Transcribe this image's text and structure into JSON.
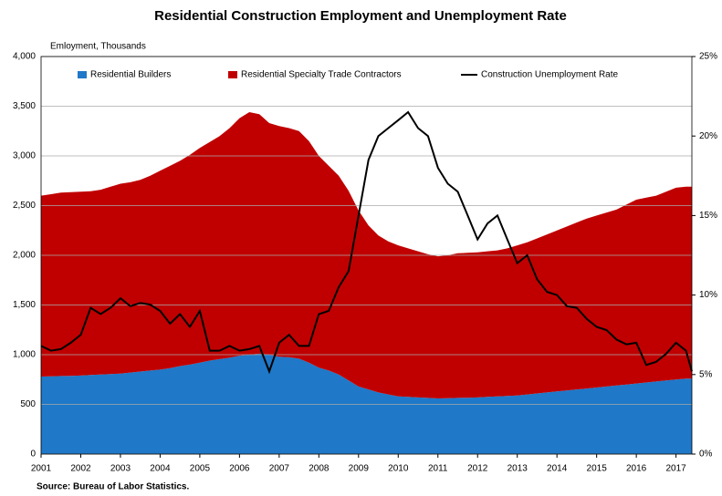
{
  "chart_data": {
    "type": "area",
    "title": "Residential Construction Employment and Unemployment Rate",
    "y_label": "Emloyment, Thousands",
    "source": "Source: Bureau of Labor Statistics.",
    "x": [
      2001,
      2001.25,
      2001.5,
      2001.75,
      2002,
      2002.25,
      2002.5,
      2002.75,
      2003,
      2003.25,
      2003.5,
      2003.75,
      2004,
      2004.25,
      2004.5,
      2004.75,
      2005,
      2005.25,
      2005.5,
      2005.75,
      2006,
      2006.25,
      2006.5,
      2006.75,
      2007,
      2007.25,
      2007.5,
      2007.75,
      2008,
      2008.25,
      2008.5,
      2008.75,
      2009,
      2009.25,
      2009.5,
      2009.75,
      2010,
      2010.25,
      2010.5,
      2010.75,
      2011,
      2011.25,
      2011.5,
      2011.75,
      2012,
      2012.25,
      2012.5,
      2012.75,
      2013,
      2013.25,
      2013.5,
      2013.75,
      2014,
      2014.25,
      2014.5,
      2014.75,
      2015,
      2015.25,
      2015.5,
      2015.75,
      2016,
      2016.25,
      2016.5,
      2016.75,
      2017,
      2017.25,
      2017.4
    ],
    "series": [
      {
        "name": "Residential Builders",
        "color": "#1f78c8",
        "values": [
          780,
          782,
          785,
          787,
          790,
          795,
          800,
          805,
          810,
          820,
          830,
          840,
          850,
          865,
          885,
          900,
          920,
          940,
          955,
          970,
          990,
          1000,
          1010,
          1000,
          980,
          975,
          960,
          920,
          870,
          840,
          800,
          740,
          680,
          650,
          620,
          600,
          580,
          575,
          570,
          565,
          560,
          562,
          565,
          567,
          570,
          575,
          580,
          585,
          590,
          600,
          610,
          620,
          630,
          640,
          650,
          660,
          670,
          680,
          690,
          700,
          710,
          720,
          730,
          740,
          750,
          760,
          760
        ]
      },
      {
        "name": "Residential Specialty Trade Contractors",
        "color": "#c00000",
        "values": [
          1820,
          1833,
          1845,
          1848,
          1850,
          1850,
          1860,
          1885,
          1910,
          1915,
          1930,
          1960,
          2000,
          2035,
          2065,
          2110,
          2160,
          2200,
          2245,
          2310,
          2390,
          2440,
          2410,
          2330,
          2320,
          2305,
          2290,
          2230,
          2130,
          2060,
          2000,
          1910,
          1770,
          1650,
          1580,
          1540,
          1520,
          1495,
          1470,
          1445,
          1430,
          1438,
          1455,
          1458,
          1460,
          1465,
          1470,
          1485,
          1510,
          1530,
          1560,
          1590,
          1620,
          1650,
          1680,
          1710,
          1730,
          1750,
          1770,
          1810,
          1850,
          1860,
          1870,
          1900,
          1930,
          1930,
          1930
        ]
      },
      {
        "name": "Construction Unemployment Rate",
        "color": "#000000",
        "type": "line",
        "axis": "y2",
        "values": [
          6.8,
          6.5,
          6.6,
          7.0,
          7.5,
          9.2,
          8.8,
          9.2,
          9.8,
          9.3,
          9.5,
          9.4,
          9.0,
          8.2,
          8.8,
          8.0,
          9.0,
          6.5,
          6.5,
          6.8,
          6.5,
          6.6,
          6.8,
          5.2,
          7.0,
          7.5,
          6.8,
          6.8,
          8.8,
          9.0,
          10.5,
          11.5,
          15.0,
          18.5,
          20.0,
          20.5,
          21.0,
          21.5,
          20.5,
          20.0,
          18.0,
          17.0,
          16.5,
          15.0,
          13.5,
          14.5,
          15.0,
          13.5,
          12.0,
          12.5,
          11.0,
          10.2,
          10.0,
          9.3,
          9.2,
          8.5,
          8.0,
          7.8,
          7.2,
          6.9,
          7.0,
          5.6,
          5.8,
          6.3,
          7.0,
          6.5,
          5.2
        ]
      }
    ],
    "xlim": [
      2001,
      2017.4
    ],
    "xticks": [
      2001,
      2002,
      2003,
      2004,
      2005,
      2006,
      2007,
      2008,
      2009,
      2010,
      2011,
      2012,
      2013,
      2014,
      2015,
      2016,
      2017
    ],
    "ylim": [
      0,
      4000
    ],
    "yticks": [
      0,
      500,
      {
        "value": 1000,
        "label": "1,000"
      },
      {
        "value": 1500,
        "label": "1,500"
      },
      {
        "value": 2000,
        "label": "2,000"
      },
      {
        "value": 2500,
        "label": "2,500"
      },
      {
        "value": 3000,
        "label": "3,000"
      },
      {
        "value": 3500,
        "label": "3,500"
      },
      {
        "value": 4000,
        "label": "4,000"
      }
    ],
    "y2lim": [
      0,
      25
    ],
    "y2ticks": [
      {
        "value": 0,
        "label": "0%"
      },
      {
        "value": 5,
        "label": "5%"
      },
      {
        "value": 10,
        "label": "10%"
      },
      {
        "value": 15,
        "label": "15%"
      },
      {
        "value": 20,
        "label": "20%"
      },
      {
        "value": 25,
        "label": "25%"
      }
    ],
    "grid": true,
    "legend": "top"
  }
}
